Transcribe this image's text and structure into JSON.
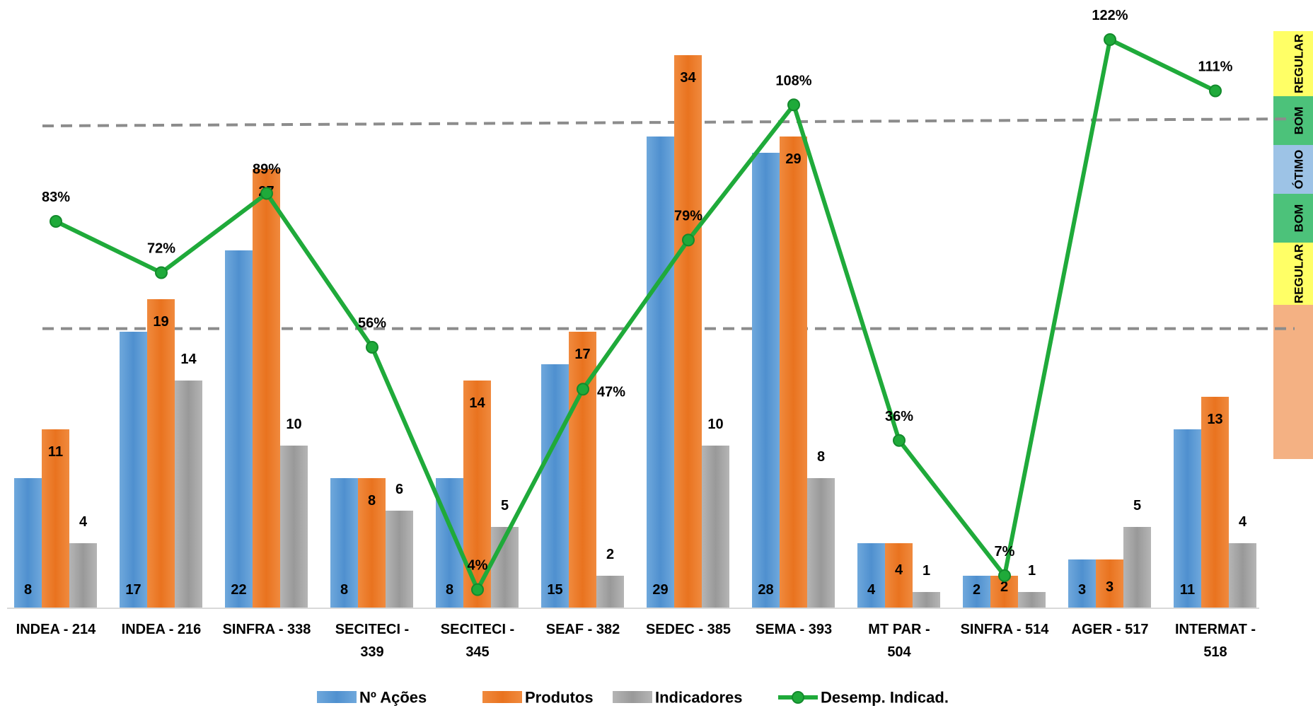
{
  "chart_data": {
    "type": "bar",
    "categories": [
      [
        "INDEA - 214"
      ],
      [
        "INDEA - 216"
      ],
      [
        "SINFRA - 338"
      ],
      [
        "SECITECI -",
        "339"
      ],
      [
        "SECITECI -",
        "345"
      ],
      [
        "SEAF - 382"
      ],
      [
        "SEDEC - 385"
      ],
      [
        "SEMA - 393"
      ],
      [
        "MT PAR -",
        "504"
      ],
      [
        "SINFRA - 514"
      ],
      [
        "AGER - 517"
      ],
      [
        "INTERMAT -",
        "518"
      ]
    ],
    "series": [
      {
        "name": "Nº Ações",
        "kind": "bar",
        "color": "#5B9BD5",
        "values": [
          8,
          17,
          22,
          8,
          8,
          15,
          29,
          28,
          4,
          2,
          3,
          11
        ],
        "value_labels": [
          "8",
          "17",
          "22",
          "8",
          "8",
          "15",
          "29",
          "28",
          "4",
          "2",
          "3",
          "11"
        ]
      },
      {
        "name": "Produtos",
        "kind": "bar",
        "color": "#ED7D31",
        "values": [
          11,
          19,
          27,
          8,
          14,
          17,
          34,
          29,
          4,
          2,
          3,
          13
        ],
        "value_labels": [
          "11",
          "19",
          "27",
          "8",
          "14",
          "17",
          "34",
          "29",
          "4",
          "2",
          "3",
          "13"
        ]
      },
      {
        "name": "Indicadores",
        "kind": "bar",
        "color": "#A5A5A5",
        "values": [
          4,
          14,
          10,
          6,
          5,
          2,
          10,
          8,
          1,
          1,
          5,
          4
        ],
        "value_labels": [
          "4",
          "14",
          "10",
          "6",
          "5",
          "2",
          "10",
          "8",
          "1",
          "1",
          "5",
          "4"
        ]
      },
      {
        "name": "Desemp. Indicad.",
        "kind": "line",
        "color": "#1FAA3A",
        "values": [
          83,
          72,
          89,
          56,
          4,
          47,
          79,
          108,
          36,
          7,
          122,
          111
        ],
        "value_labels": [
          "83%",
          "72%",
          "89%",
          "56%",
          "4%",
          "47%",
          "79%",
          "108%",
          "36%",
          "7%",
          "122%",
          "111%"
        ]
      }
    ],
    "bar_axis_range": [
      0,
      34
    ],
    "line_axis_range": [
      0,
      122
    ],
    "reference_lines_percent": [
      60,
      105
    ],
    "performance_bands": [
      {
        "label": "REGULAR",
        "color": "#FFFF66"
      },
      {
        "label": "BOM",
        "color": "#4CC27A"
      },
      {
        "label": "ÓTIMO",
        "color": "#9DC3E6"
      },
      {
        "label": "BOM",
        "color": "#4CC27A"
      },
      {
        "label": "REGULAR",
        "color": "#FFFF66"
      },
      {
        "label": "",
        "color": "#F4B183"
      }
    ],
    "legend_position": "bottom",
    "grid": false
  }
}
